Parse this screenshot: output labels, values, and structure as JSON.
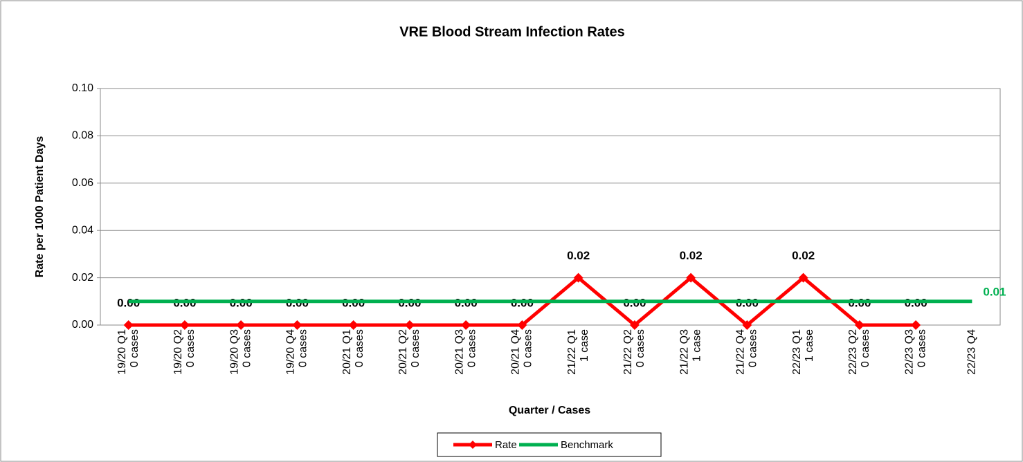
{
  "chart_data": {
    "type": "line",
    "title": "VRE Blood Stream Infection Rates",
    "x_label": "Quarter / Cases",
    "y_label": "Rate per 1000 Patient Days",
    "categories": [
      [
        "19/20 Q1",
        "0 cases"
      ],
      [
        "19/20 Q2",
        "0 cases"
      ],
      [
        "19/20 Q3",
        "0 cases"
      ],
      [
        "19/20 Q4",
        "0 cases"
      ],
      [
        "20/21 Q1",
        "0 cases"
      ],
      [
        "20/21 Q2",
        "0 cases"
      ],
      [
        "20/21 Q3",
        "0 cases"
      ],
      [
        "20/21 Q4",
        "0 cases"
      ],
      [
        "21/22 Q1",
        "1 case"
      ],
      [
        "21/22 Q2",
        "0 cases"
      ],
      [
        "21/22 Q3",
        "1 case"
      ],
      [
        "21/22 Q4",
        "0 cases"
      ],
      [
        "22/23 Q1",
        "1 case"
      ],
      [
        "22/23 Q2",
        "0 cases"
      ],
      [
        "22/23 Q3",
        "0 cases"
      ],
      [
        "22/23 Q4"
      ]
    ],
    "series": [
      {
        "name": "Rate",
        "color": "#ff0000",
        "marker": "diamond",
        "values": [
          0,
          0,
          0,
          0,
          0,
          0,
          0,
          0,
          0.02,
          0,
          0.02,
          0,
          0.02,
          0,
          0,
          null
        ],
        "value_labels": [
          "0.00",
          "0.00",
          "0.00",
          "0.00",
          "0.00",
          "0.00",
          "0.00",
          "0.00",
          "0.02",
          "0.00",
          "0.02",
          "0.00",
          "0.02",
          "0.00",
          "0.00",
          null
        ]
      },
      {
        "name": "Benchmark",
        "color": "#00b050",
        "values": [
          0.01,
          0.01,
          0.01,
          0.01,
          0.01,
          0.01,
          0.01,
          0.01,
          0.01,
          0.01,
          0.01,
          0.01,
          0.01,
          0.01,
          0.01,
          0.01
        ],
        "value_labels": [
          null,
          null,
          null,
          null,
          null,
          null,
          null,
          null,
          null,
          null,
          null,
          null,
          null,
          null,
          null,
          "0.01"
        ]
      }
    ],
    "ylim": [
      0,
      0.1
    ],
    "yticks": [
      {
        "value": 0,
        "label": "0.00"
      },
      {
        "value": 0.02,
        "label": "0.02"
      },
      {
        "value": 0.04,
        "label": "0.04"
      },
      {
        "value": 0.06,
        "label": "0.06"
      },
      {
        "value": 0.08,
        "label": "0.08"
      },
      {
        "value": 0.1,
        "label": "0.10"
      }
    ],
    "grid": true,
    "legend": "bottom"
  }
}
